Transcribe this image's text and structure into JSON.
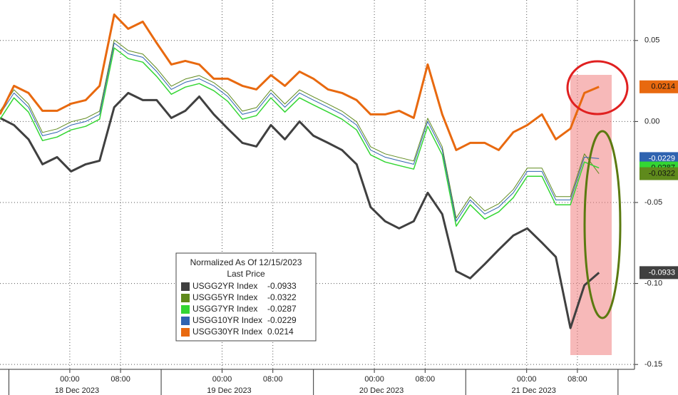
{
  "chart_data": {
    "type": "line",
    "x": [
      -11.0,
      -8.8,
      -6.5,
      -4.3,
      -2.0,
      0.2,
      2.5,
      4.7,
      7.0,
      9.2,
      11.5,
      13.7,
      16.0,
      18.2,
      20.4,
      22.7,
      24.9,
      27.2,
      29.4,
      31.7,
      33.9,
      36.2,
      38.4,
      40.7,
      42.9,
      45.2,
      47.4,
      49.7,
      51.9,
      54.2,
      56.4,
      58.7,
      60.9,
      63.1,
      65.4,
      67.6,
      69.9,
      72.1,
      74.4,
      76.6,
      78.9,
      81.1,
      83.4
    ],
    "series": [
      {
        "name": "USGG2YR Index",
        "color": "#404040",
        "last_value_label": "-0.0933",
        "values": [
          0.0022,
          -0.0022,
          -0.011,
          -0.0264,
          -0.022,
          -0.0308,
          -0.0264,
          -0.0242,
          0.0088,
          0.0176,
          0.0132,
          0.0132,
          0.0022,
          0.0066,
          0.0154,
          0.0044,
          -0.0044,
          -0.0132,
          -0.0154,
          -0.0022,
          -0.011,
          0,
          -0.0088,
          -0.0132,
          -0.0176,
          -0.0264,
          -0.0528,
          -0.0616,
          -0.066,
          -0.0616,
          -0.044,
          -0.0572,
          -0.0924,
          -0.0968,
          -0.088,
          -0.0792,
          -0.0704,
          -0.066,
          -0.0748,
          -0.0836,
          -0.1275,
          -0.1011,
          -0.0933
        ]
      },
      {
        "name": "USGG5YR Index",
        "color": "#5f8a1c",
        "last_value_label": "-0.0322",
        "values": [
          0.0064,
          0.0196,
          0.0108,
          -0.0068,
          -0.0046,
          -0.0002,
          0.002,
          0.0064,
          0.0504,
          0.0438,
          0.0416,
          0.0328,
          0.0218,
          0.0262,
          0.0284,
          0.024,
          0.0174,
          0.0064,
          0.0086,
          0.0196,
          0.0108,
          0.0196,
          0.0152,
          0.0108,
          0.0064,
          -0.0002,
          -0.0156,
          -0.02,
          -0.0222,
          -0.0244,
          0.002,
          -0.0156,
          -0.0596,
          -0.0464,
          -0.0552,
          -0.0508,
          -0.042,
          -0.0288,
          -0.0288,
          -0.0464,
          -0.0464,
          -0.02,
          -0.0322
        ]
      },
      {
        "name": "USGG7YR Index",
        "color": "#33d633",
        "last_value_label": "-0.0287",
        "values": [
          0.0014,
          0.0146,
          0.0058,
          -0.0118,
          -0.0096,
          -0.0052,
          -0.003,
          0.0014,
          0.0454,
          0.0388,
          0.0366,
          0.0278,
          0.0168,
          0.0212,
          0.0234,
          0.019,
          0.0124,
          0.0014,
          0.0036,
          0.0146,
          0.0058,
          0.0146,
          0.0102,
          0.0058,
          0.0014,
          -0.0052,
          -0.0206,
          -0.025,
          -0.0272,
          -0.0294,
          -0.003,
          -0.0206,
          -0.0646,
          -0.0514,
          -0.0602,
          -0.0558,
          -0.047,
          -0.0338,
          -0.0338,
          -0.0514,
          -0.0514,
          -0.025,
          -0.0287
        ]
      },
      {
        "name": "USGG10YR Index",
        "color": "#2f63b0",
        "last_value_label": "-0.0229",
        "values": [
          0.0044,
          0.0176,
          0.0088,
          -0.0088,
          -0.0066,
          -0.0022,
          0,
          0.0044,
          0.0484,
          0.0418,
          0.0396,
          0.0308,
          0.0198,
          0.0242,
          0.0264,
          0.022,
          0.0154,
          0.0044,
          0.0066,
          0.0176,
          0.0088,
          0.0176,
          0.0132,
          0.0088,
          0.0044,
          -0.0022,
          -0.0176,
          -0.022,
          -0.0242,
          -0.0264,
          0,
          -0.0176,
          -0.0616,
          -0.0484,
          -0.0572,
          -0.0528,
          -0.044,
          -0.0308,
          -0.0308,
          -0.0484,
          -0.0484,
          -0.022,
          -0.0229
        ]
      },
      {
        "name": "USGG30YR Index",
        "color": "#e8690f",
        "last_value_label": "0.0214",
        "values": [
          0.0044,
          0.022,
          0.0176,
          0.0066,
          0.0066,
          0.011,
          0.0132,
          0.022,
          0.066,
          0.0572,
          0.0616,
          0.0484,
          0.0352,
          0.0374,
          0.0352,
          0.0264,
          0.0264,
          0.022,
          0.0198,
          0.0286,
          0.022,
          0.0308,
          0.0264,
          0.0198,
          0.0176,
          0.0132,
          0.0044,
          0.0044,
          0.0066,
          0.0022,
          0.0352,
          0.0044,
          -0.0176,
          -0.0132,
          -0.0132,
          -0.0176,
          -0.0066,
          -0.0022,
          0.0044,
          -0.011,
          -0.0044,
          0.0176,
          0.0214
        ]
      }
    ],
    "legend_title": [
      "Normalized As Of 12/15/2023",
      "Last Price"
    ],
    "xlim": [
      -11,
      89
    ],
    "xticks": [
      {
        "value": 0,
        "label": "00:00"
      },
      {
        "value": 8,
        "label": "08:00"
      },
      {
        "value": 24,
        "label": "00:00"
      },
      {
        "value": 32,
        "label": "08:00"
      },
      {
        "value": 48,
        "label": "00:00"
      },
      {
        "value": 56,
        "label": "08:00"
      },
      {
        "value": 72,
        "label": "00:00"
      },
      {
        "value": 80,
        "label": "08:00"
      }
    ],
    "date_labels": [
      {
        "value": 0,
        "label": "18 Dec 2023"
      },
      {
        "value": 24,
        "label": "19 Dec 2023"
      },
      {
        "value": 48,
        "label": "20 Dec 2023"
      },
      {
        "value": 72,
        "label": "21 Dec 2023"
      }
    ],
    "ylim": [
      -0.153,
      0.075
    ],
    "yticks": [
      0.05,
      {
        "value": 0,
        "label": "0.00"
      },
      -0.05,
      {
        "value": -0.1,
        "label": "-0.10"
      },
      {
        "value": -0.15,
        "label": "-0.15"
      }
    ],
    "grid": true
  }
}
